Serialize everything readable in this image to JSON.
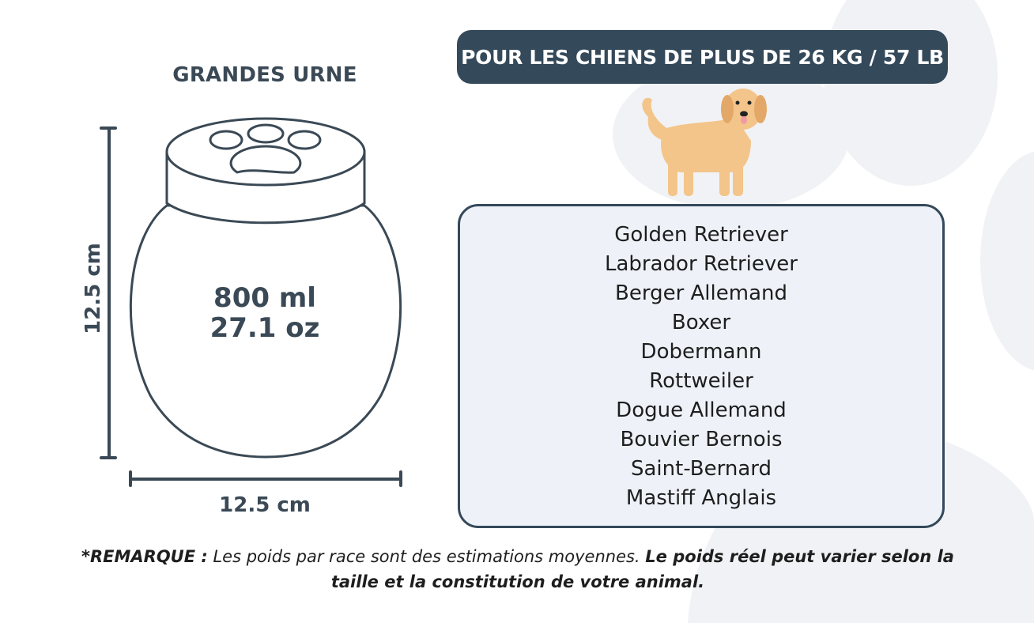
{
  "urn": {
    "title": "GRANDES URNE",
    "capacity_ml": "800 ml",
    "capacity_oz": "27.1 oz",
    "height": "12.5 cm",
    "width": "12.5 cm"
  },
  "banner": {
    "text": "POUR LES CHIENS DE PLUS DE 26 KG / 57 LB"
  },
  "breeds": [
    "Golden Retriever",
    "Labrador Retriever",
    "Berger Allemand",
    "Boxer",
    "Dobermann",
    "Rottweiler",
    "Dogue Allemand",
    "Bouvier Bernois",
    "Saint-Bernard",
    "Mastiff Anglais"
  ],
  "note": {
    "label": "*REMARQUE :",
    "text": "Les poids par race sont des estimations moyennes.",
    "emphasis": "Le poids réel peut varier selon la taille et la constitution de votre animal."
  },
  "colors": {
    "dark": "#34495a",
    "list_bg": "#eef2f8",
    "paw_bg": "#f1f2f5",
    "dog": "#f3c58a"
  }
}
